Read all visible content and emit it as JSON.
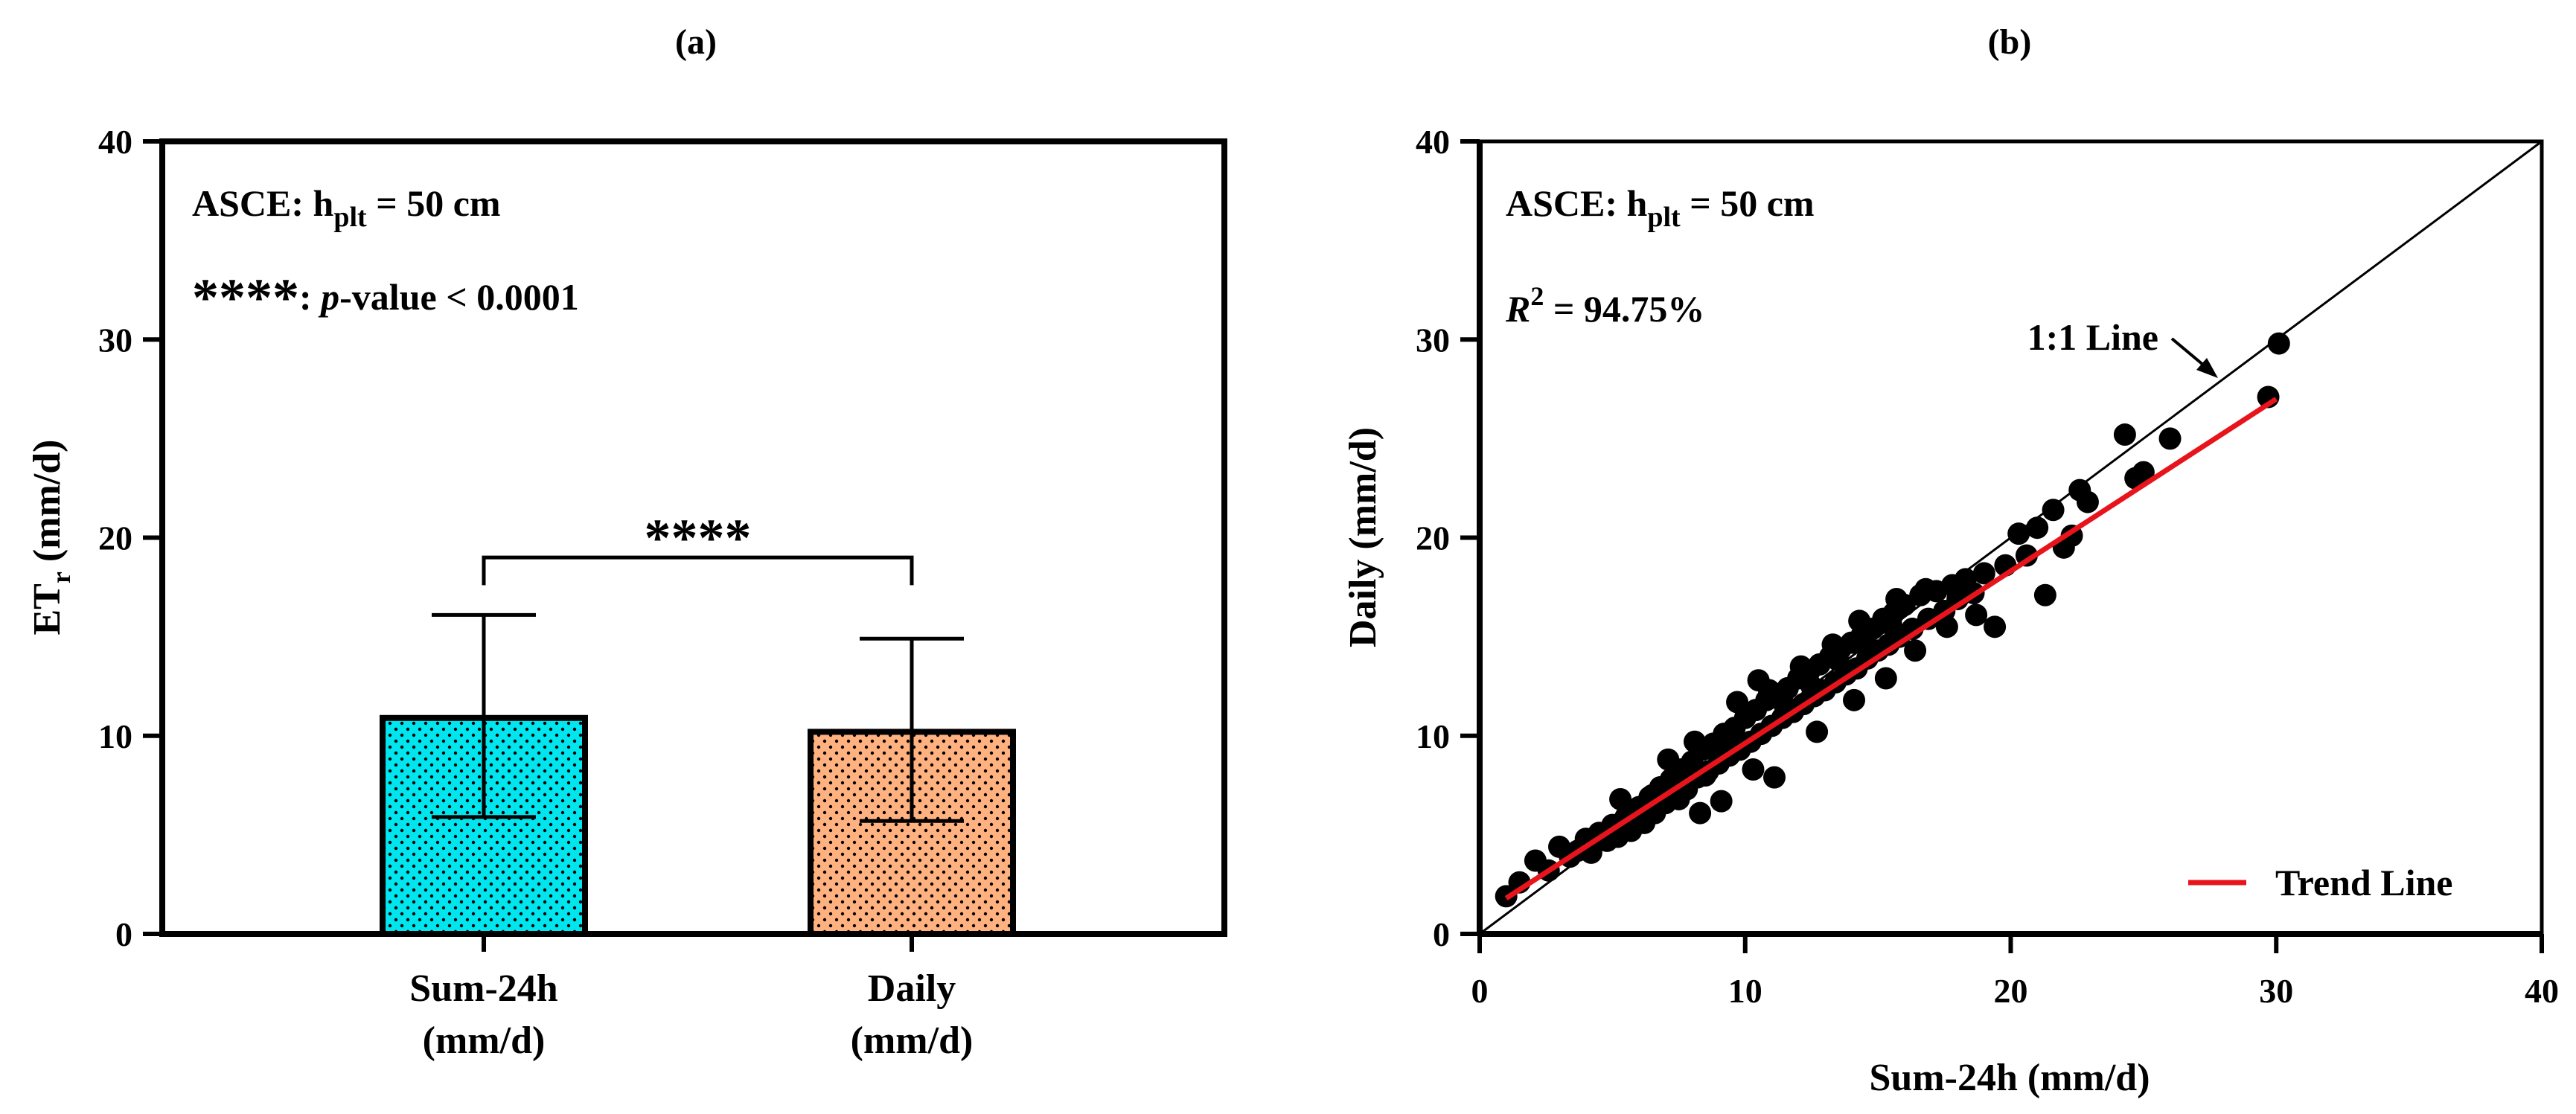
{
  "panels": {
    "a_label": "(a)",
    "b_label": "(b)"
  },
  "colors": {
    "sum24h_fill": "#00E5EE",
    "daily_fill": "#FFB27F",
    "trend_line": "#E8141C",
    "points": "#000000",
    "axis": "#000000"
  },
  "chart_data": [
    {
      "type": "bar",
      "panel": "(a)",
      "categories": [
        "Sum-24h\n(mm/d)",
        "Daily\n(mm/d)"
      ],
      "category_lines": [
        [
          "Sum-24h",
          "(mm/d)"
        ],
        [
          "Daily",
          "(mm/d)"
        ]
      ],
      "values": [
        10.9,
        10.2
      ],
      "error_upper": [
        16.1,
        14.9
      ],
      "error_lower": [
        5.9,
        5.7
      ],
      "ylabel_main": "ET",
      "ylabel_sub": "r",
      "ylabel_unit": " (mm/d)",
      "ylim": [
        0,
        40
      ],
      "yticks": [
        "0",
        "10",
        "20",
        "30",
        "40"
      ],
      "grid": false,
      "annotation_line1_main": "ASCE: h",
      "annotation_line1_sub": "plt",
      "annotation_line1_tail": " = 50 cm",
      "significance_stars": "****",
      "significance_legend_stars": "****",
      "significance_legend_p": "p",
      "significance_legend_tail": "-value < 0.0001",
      "significance_bracket_y": 19,
      "bar_patterns": [
        "dotted",
        "dotted"
      ]
    },
    {
      "type": "scatter",
      "panel": "(b)",
      "xlabel": "Sum-24h (mm/d)",
      "ylabel": "Daily (mm/d)",
      "xlim": [
        0,
        40
      ],
      "ylim": [
        0,
        40
      ],
      "xticks": [
        "0",
        "10",
        "20",
        "30",
        "40"
      ],
      "yticks": [
        "0",
        "10",
        "20",
        "30",
        "40"
      ],
      "grid": false,
      "annotation_line1_main": "ASCE: h",
      "annotation_line1_sub": "plt",
      "annotation_line1_tail": " = 50 cm",
      "r2_label_main": "R",
      "r2_label_sup": "2",
      "r2_label_tail": " = 94.75%",
      "one_to_one_label": "1:1 Line",
      "legend": {
        "entries": [
          "Trend Line"
        ],
        "placement": "bottom-right"
      },
      "one_to_one": {
        "x": [
          0,
          40
        ],
        "y": [
          0,
          40
        ]
      },
      "trend_line": {
        "x": [
          1.0,
          30.0
        ],
        "y": [
          1.8,
          27.0
        ]
      },
      "points": [
        [
          1.0,
          1.9
        ],
        [
          1.5,
          2.6
        ],
        [
          2.1,
          3.7
        ],
        [
          2.6,
          3.2
        ],
        [
          3.0,
          4.4
        ],
        [
          3.4,
          3.9
        ],
        [
          3.7,
          4.2
        ],
        [
          4.0,
          4.8
        ],
        [
          4.2,
          4.1
        ],
        [
          4.5,
          5.1
        ],
        [
          4.8,
          4.7
        ],
        [
          5.0,
          5.5
        ],
        [
          5.2,
          4.9
        ],
        [
          5.5,
          5.9
        ],
        [
          5.7,
          5.2
        ],
        [
          6.0,
          6.4
        ],
        [
          6.2,
          5.6
        ],
        [
          6.4,
          6.9
        ],
        [
          6.6,
          6.1
        ],
        [
          6.8,
          7.4
        ],
        [
          7.0,
          6.6
        ],
        [
          7.2,
          7.8
        ],
        [
          7.4,
          7.1
        ],
        [
          7.6,
          8.3
        ],
        [
          7.8,
          7.3
        ],
        [
          8.0,
          8.7
        ],
        [
          8.2,
          7.9
        ],
        [
          8.4,
          9.3
        ],
        [
          8.6,
          8.2
        ],
        [
          8.8,
          9.6
        ],
        [
          9.0,
          8.6
        ],
        [
          9.2,
          10.1
        ],
        [
          9.4,
          9.0
        ],
        [
          9.6,
          10.4
        ],
        [
          9.8,
          9.3
        ],
        [
          10.0,
          10.9
        ],
        [
          10.2,
          9.7
        ],
        [
          10.4,
          11.3
        ],
        [
          10.6,
          10.1
        ],
        [
          10.8,
          11.8
        ],
        [
          11.0,
          10.5
        ],
        [
          11.2,
          12.1
        ],
        [
          11.4,
          10.9
        ],
        [
          11.6,
          12.4
        ],
        [
          11.8,
          11.2
        ],
        [
          12.0,
          12.9
        ],
        [
          12.2,
          11.6
        ],
        [
          12.4,
          13.2
        ],
        [
          12.6,
          12.0
        ],
        [
          12.8,
          13.6
        ],
        [
          13.0,
          12.3
        ],
        [
          13.2,
          14.0
        ],
        [
          13.4,
          12.7
        ],
        [
          13.6,
          14.4
        ],
        [
          13.8,
          13.1
        ],
        [
          14.0,
          14.7
        ],
        [
          14.2,
          13.4
        ],
        [
          14.4,
          15.1
        ],
        [
          14.6,
          13.9
        ],
        [
          14.8,
          15.4
        ],
        [
          15.0,
          14.3
        ],
        [
          15.2,
          15.9
        ],
        [
          15.4,
          14.6
        ],
        [
          15.6,
          16.2
        ],
        [
          15.8,
          15.0
        ],
        [
          16.0,
          16.6
        ],
        [
          16.3,
          15.4
        ],
        [
          16.6,
          17.1
        ],
        [
          16.9,
          15.9
        ],
        [
          17.2,
          17.3
        ],
        [
          17.5,
          16.3
        ],
        [
          17.8,
          17.6
        ],
        [
          18.0,
          16.9
        ],
        [
          18.3,
          17.9
        ],
        [
          18.6,
          17.2
        ],
        [
          19.0,
          18.2
        ],
        [
          19.4,
          15.5
        ],
        [
          19.8,
          18.6
        ],
        [
          20.3,
          20.2
        ],
        [
          20.6,
          19.1
        ],
        [
          21.0,
          20.5
        ],
        [
          21.3,
          17.1
        ],
        [
          21.6,
          21.4
        ],
        [
          22.0,
          19.5
        ],
        [
          22.3,
          20.1
        ],
        [
          22.6,
          22.4
        ],
        [
          22.9,
          21.8
        ],
        [
          24.3,
          25.2
        ],
        [
          24.7,
          23.0
        ],
        [
          25.0,
          23.3
        ],
        [
          26.0,
          25.0
        ],
        [
          29.7,
          27.1
        ],
        [
          30.1,
          29.8
        ],
        [
          6.5,
          7.0
        ],
        [
          7.5,
          6.8
        ],
        [
          8.5,
          8.0
        ],
        [
          9.5,
          9.8
        ],
        [
          10.5,
          12.8
        ],
        [
          11.5,
          11.5
        ],
        [
          12.5,
          12.5
        ],
        [
          13.5,
          13.8
        ],
        [
          14.5,
          14.9
        ],
        [
          15.5,
          15.6
        ],
        [
          8.3,
          6.1
        ],
        [
          9.1,
          6.7
        ],
        [
          10.3,
          8.3
        ],
        [
          11.1,
          7.9
        ],
        [
          12.7,
          10.2
        ],
        [
          14.1,
          11.8
        ],
        [
          15.3,
          12.9
        ],
        [
          16.4,
          14.3
        ],
        [
          17.6,
          15.5
        ],
        [
          18.7,
          16.1
        ],
        [
          9.7,
          11.7
        ],
        [
          10.9,
          12.3
        ],
        [
          12.1,
          13.5
        ],
        [
          13.3,
          14.6
        ],
        [
          14.3,
          15.8
        ],
        [
          15.7,
          16.9
        ],
        [
          16.8,
          17.4
        ],
        [
          7.1,
          8.8
        ],
        [
          8.1,
          9.7
        ],
        [
          5.3,
          6.8
        ]
      ]
    }
  ]
}
